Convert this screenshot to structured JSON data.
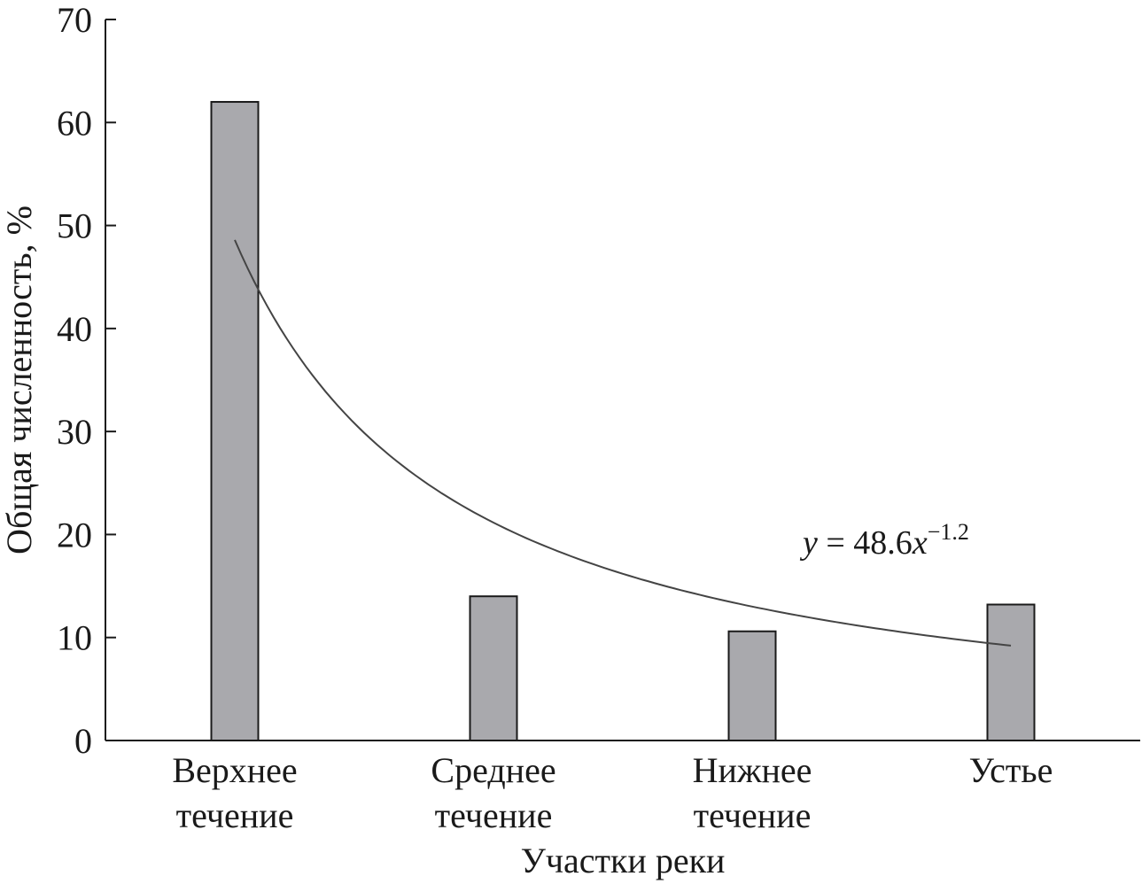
{
  "chart_data": {
    "type": "bar",
    "categories": [
      [
        "Верхнее",
        "течение"
      ],
      [
        "Среднее",
        "течение"
      ],
      [
        "Нижнее",
        "течение"
      ],
      [
        "Устье"
      ]
    ],
    "values": [
      62,
      14,
      10.6,
      13.2
    ],
    "ylabel": "Общая численность, %",
    "xlabel": "Участки реки",
    "ylim": [
      0,
      70
    ],
    "yticks": [
      "0",
      "10",
      "20",
      "30",
      "40",
      "50",
      "60",
      "70"
    ],
    "grid": false,
    "trendline": {
      "type": "power",
      "a": 48.6,
      "b": -1.2,
      "equation": {
        "var": "y",
        "rhs": " = 48.6",
        "xvar": "x",
        "exponent": "−1.2"
      }
    },
    "colors": {
      "bar": "#a9a9ad",
      "outline": "#1a1a1a",
      "trend": "#444444"
    }
  }
}
